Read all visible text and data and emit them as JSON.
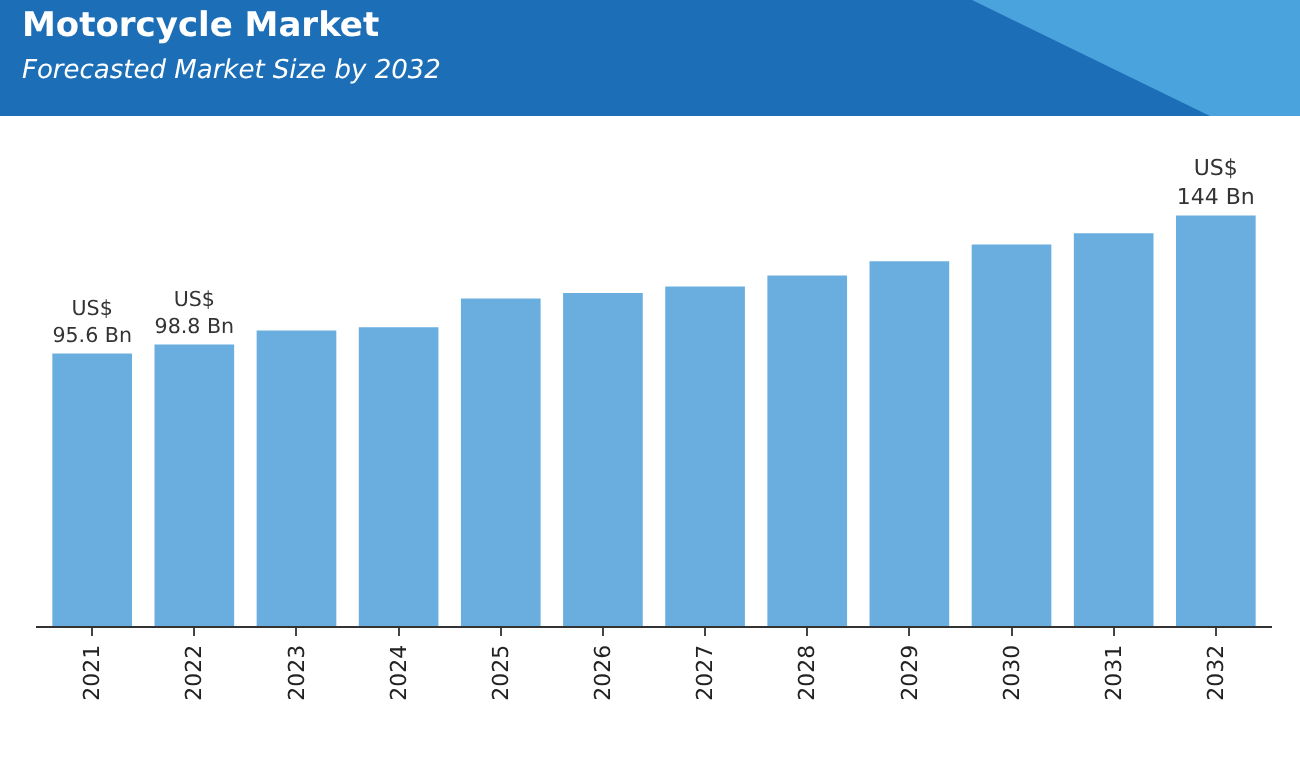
{
  "chart_data": {
    "type": "bar",
    "title": "Motorcycle Market",
    "subtitle": "Forecasted Market Size by 2032",
    "categories": [
      "2021",
      "2022",
      "2023",
      "2024",
      "2025",
      "2026",
      "2027",
      "2028",
      "2029",
      "2030",
      "2031",
      "2032"
    ],
    "values": [
      95.6,
      98.8,
      103.7,
      104.8,
      114.9,
      116.8,
      119.1,
      123,
      128,
      133.9,
      137.8,
      144
    ],
    "value_labels": [
      "US$\n95.6 Bn",
      "US$\n98.8 Bn",
      null,
      null,
      null,
      null,
      null,
      null,
      null,
      null,
      null,
      "US$\n144 Bn"
    ],
    "color": "#6aaee0",
    "legend": false
  }
}
